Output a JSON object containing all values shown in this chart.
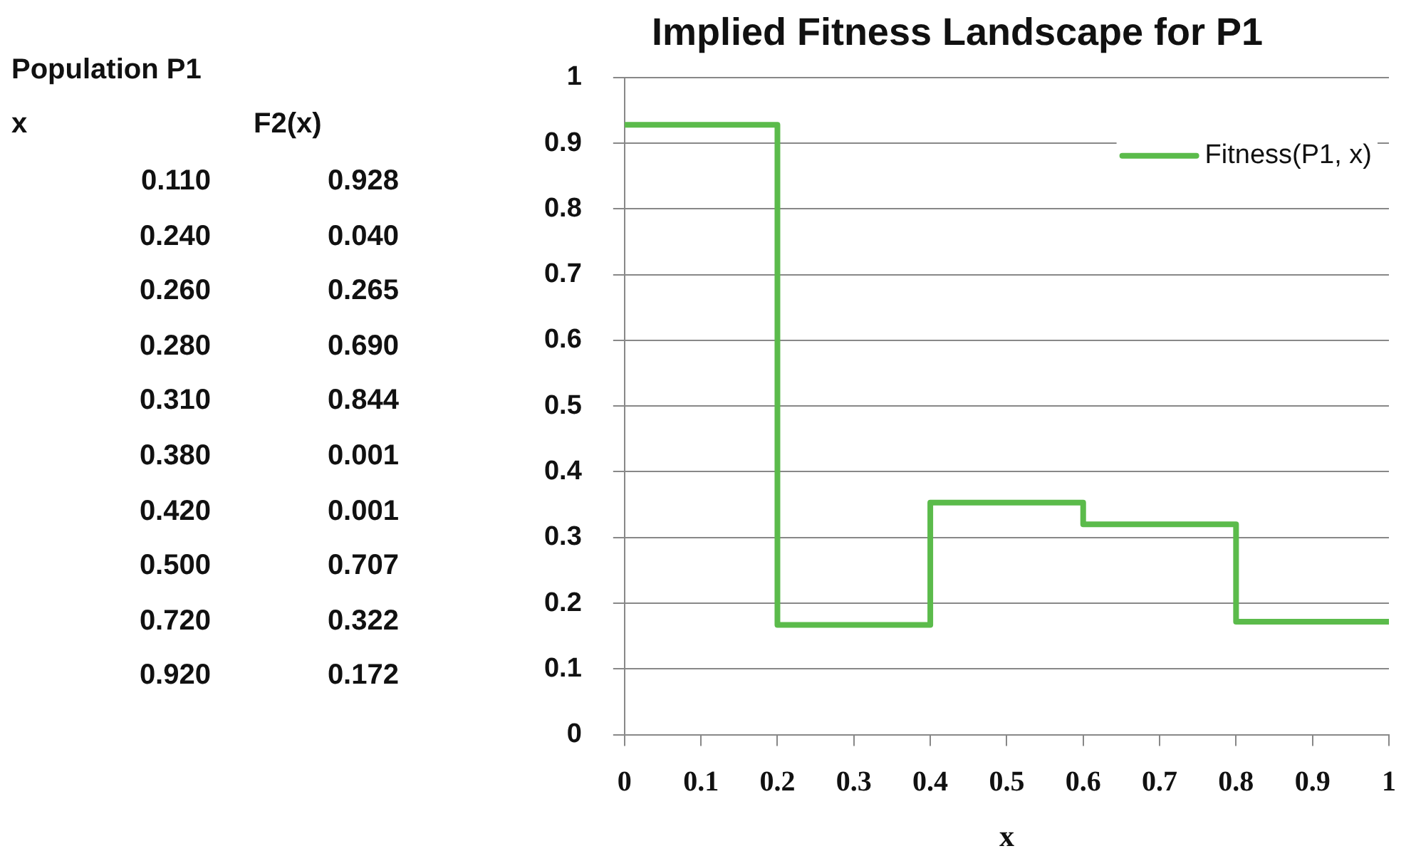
{
  "chart_data": [
    {
      "type": "other",
      "title": "Population  P1",
      "xlabel": "x",
      "ylabel": "F2(x)",
      "categories": [
        "0.110",
        "0.240",
        "0.260",
        "0.280",
        "0.310",
        "0.380",
        "0.420",
        "0.500",
        "0.720",
        "0.920"
      ],
      "values": [
        0.928,
        0.04,
        0.265,
        0.69,
        0.844,
        0.001,
        0.001,
        0.707,
        0.322,
        0.172
      ],
      "value_labels": [
        "0.928",
        "0.040",
        "0.265",
        "0.690",
        "0.844",
        "0.001",
        "0.001",
        "0.707",
        "0.322",
        "0.172"
      ]
    },
    {
      "type": "step",
      "title": "Implied Fitness Landscape for P1",
      "xlabel": "x",
      "x": [
        0,
        0.2,
        0.4,
        0.6,
        0.8,
        1
      ],
      "series": [
        {
          "name": "Fitness(P1, x)",
          "color": "#5bbb4b",
          "values": [
            0.928,
            0.167,
            0.353,
            0.32,
            0.172,
            0.172
          ]
        }
      ],
      "xlim": [
        0,
        1
      ],
      "xticks": [
        0,
        0.1,
        0.2,
        0.3,
        0.4,
        0.5,
        0.6,
        0.7,
        0.8,
        0.9,
        1
      ],
      "ylim": [
        0,
        1
      ],
      "yticks": [
        0,
        0.1,
        0.2,
        0.3,
        0.4,
        0.5,
        0.6,
        0.7,
        0.8,
        0.9,
        1
      ],
      "grid": "y",
      "legend": "top right"
    }
  ]
}
